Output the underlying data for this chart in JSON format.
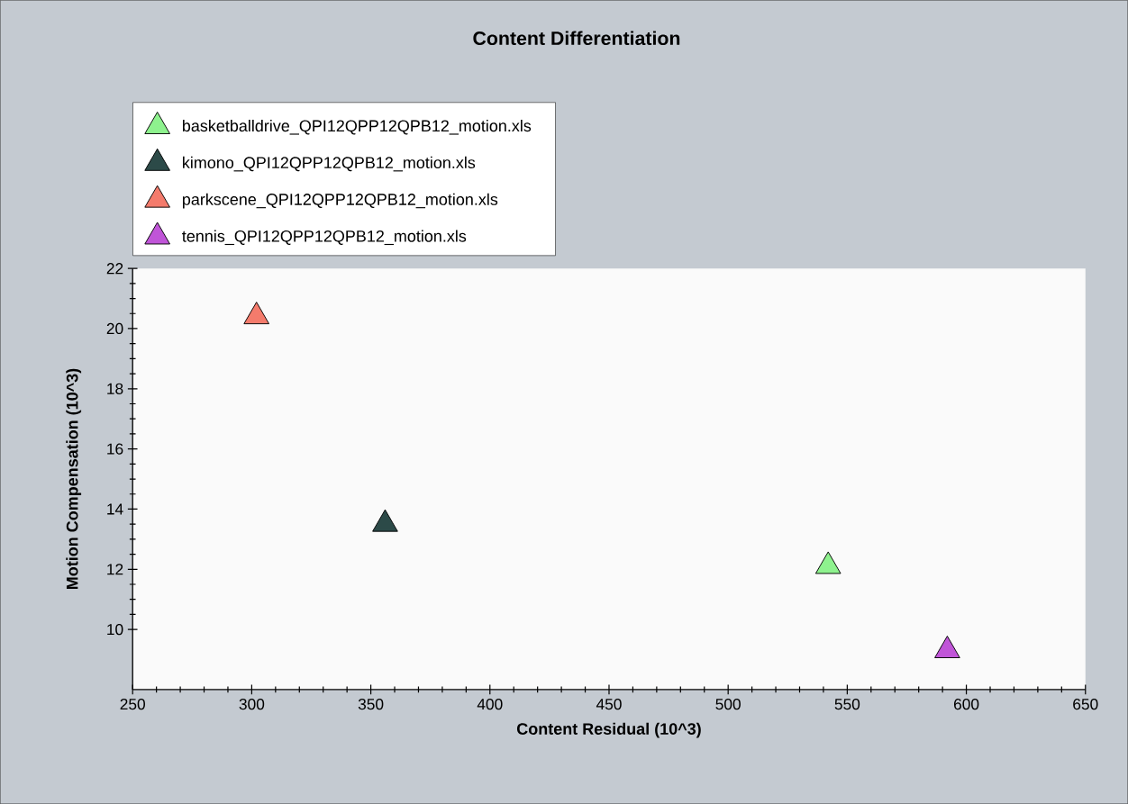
{
  "chart_data": {
    "type": "scatter",
    "title": "Content Differentiation",
    "xlabel": "Content Residual (10^3)",
    "ylabel": "Motion Compensation (10^3)",
    "xlim": [
      250,
      650
    ],
    "xticks": [
      250,
      300,
      350,
      400,
      450,
      500,
      550,
      600,
      650
    ],
    "ylim": [
      8,
      22
    ],
    "yticks": [
      10,
      12,
      14,
      16,
      18,
      20,
      22
    ],
    "marker": "triangle",
    "legend": "top left",
    "grid": false,
    "series": [
      {
        "name": "basketballdrive_QPI12QPP12QPB12_motion.xls",
        "color": "#8ef28e",
        "x": [
          542
        ],
        "values": [
          12.1
        ]
      },
      {
        "name": "kimono_QPI12QPP12QPB12_motion.xls",
        "color": "#2c4a48",
        "x": [
          356
        ],
        "values": [
          13.5
        ]
      },
      {
        "name": "parkscene_QPI12QPP12QPB12_motion.xls",
        "color": "#f47b6c",
        "x": [
          302
        ],
        "values": [
          20.4
        ]
      },
      {
        "name": "tennis_QPI12QPP12QPB12_motion.xls",
        "color": "#c055d8",
        "x": [
          592
        ],
        "values": [
          9.3
        ]
      }
    ]
  }
}
